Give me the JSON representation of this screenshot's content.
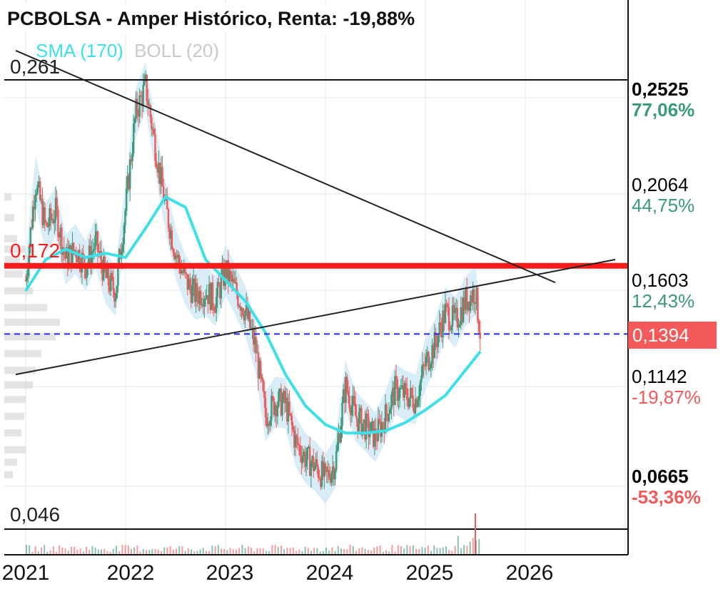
{
  "title": "PCBOLSA - Amper Histórico, Renta: -19,88%",
  "legend": {
    "sma": "SMA (170)",
    "boll": "BOLL (20)"
  },
  "levels": {
    "high": "0,261",
    "resistance": "0,172",
    "low": "0,046"
  },
  "current": "0,1394",
  "right_levels": [
    {
      "price": "0,2525",
      "pct": "77,06%",
      "bold": true,
      "sign": "pos"
    },
    {
      "price": "0,2064",
      "pct": "44,75%",
      "bold": false,
      "sign": "pos"
    },
    {
      "price": "0,1603",
      "pct": "12,43%",
      "bold": false,
      "sign": "pos"
    },
    {
      "price": "0,1142",
      "pct": "-19,87%",
      "bold": false,
      "sign": "neg"
    },
    {
      "price": "0,0665",
      "pct": "-53,36%",
      "bold": true,
      "sign": "neg"
    }
  ],
  "years": [
    "2021",
    "2022",
    "2023",
    "2024",
    "2025",
    "2026"
  ],
  "colors": {
    "candle_up": "#3a9a7a",
    "candle_down": "#f05a5a",
    "sma": "#3ee0e8",
    "boll": "#cfe9f7",
    "resistance": "#ff1a1a",
    "current_line": "#2a2aee"
  },
  "chart_data": {
    "type": "line",
    "x_unit": "year",
    "price_series": {
      "x": [
        2021.0,
        2021.1,
        2021.2,
        2021.3,
        2021.4,
        2021.5,
        2021.6,
        2021.7,
        2021.8,
        2021.9,
        2022.0,
        2022.1,
        2022.2,
        2022.3,
        2022.4,
        2022.5,
        2022.6,
        2022.7,
        2022.8,
        2022.9,
        2023.0,
        2023.1,
        2023.2,
        2023.3,
        2023.4,
        2023.5,
        2023.6,
        2023.7,
        2023.8,
        2023.9,
        2024.0,
        2024.1,
        2024.2,
        2024.3,
        2024.4,
        2024.5,
        2024.6,
        2024.7,
        2024.8,
        2024.9,
        2025.0,
        2025.1,
        2025.2,
        2025.3,
        2025.4,
        2025.5,
        2025.55
      ],
      "y": [
        0.165,
        0.213,
        0.19,
        0.198,
        0.175,
        0.18,
        0.172,
        0.183,
        0.166,
        0.16,
        0.2,
        0.245,
        0.258,
        0.228,
        0.2,
        0.178,
        0.165,
        0.158,
        0.16,
        0.155,
        0.17,
        0.16,
        0.15,
        0.133,
        0.1,
        0.107,
        0.106,
        0.088,
        0.08,
        0.076,
        0.07,
        0.078,
        0.115,
        0.1,
        0.095,
        0.09,
        0.1,
        0.113,
        0.11,
        0.108,
        0.125,
        0.135,
        0.15,
        0.145,
        0.155,
        0.16,
        0.1394
      ]
    },
    "sma_170": {
      "x": [
        2021.0,
        2021.2,
        2021.4,
        2021.6,
        2021.8,
        2022.0,
        2022.2,
        2022.4,
        2022.6,
        2022.8,
        2023.0,
        2023.2,
        2023.4,
        2023.6,
        2023.8,
        2024.0,
        2024.2,
        2024.4,
        2024.6,
        2024.8,
        2025.0,
        2025.2,
        2025.4,
        2025.55
      ],
      "y": [
        0.16,
        0.175,
        0.18,
        0.176,
        0.178,
        0.176,
        0.19,
        0.205,
        0.2,
        0.175,
        0.165,
        0.155,
        0.14,
        0.12,
        0.105,
        0.096,
        0.092,
        0.092,
        0.093,
        0.097,
        0.103,
        0.11,
        0.122,
        0.131
      ]
    },
    "boll_20": "band around price series",
    "horizontal_levels": [
      0.261,
      0.172,
      0.046
    ],
    "current_price": 0.1394,
    "trendlines": [
      {
        "x": [
          2020.9,
          2026.3
        ],
        "y": [
          0.275,
          0.164
        ]
      },
      {
        "x": [
          2020.9,
          2026.9
        ],
        "y": [
          0.12,
          0.175
        ]
      }
    ],
    "right_axis_levels": [
      0.2525,
      0.2064,
      0.1603,
      0.1142,
      0.0665
    ],
    "xlim": [
      2021.0,
      2027.3
    ],
    "ylim": [
      0.04,
      0.275
    ],
    "x_ticks": [
      "2021",
      "2022",
      "2023",
      "2024",
      "2025",
      "2026"
    ],
    "grid": true,
    "volume_histogram": "horizontal volume profile at left edge, vertical volume bars at bottom"
  }
}
